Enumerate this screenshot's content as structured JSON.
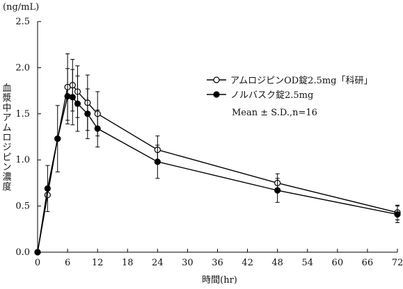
{
  "chart_data": {
    "type": "line",
    "unit_label": "(ng/mL)",
    "xlabel": "時間(hr)",
    "ylabel": "血漿中アムロジピン濃度",
    "xlim": [
      0,
      72
    ],
    "ylim": [
      0,
      2.5
    ],
    "xticks": [
      0,
      6,
      12,
      18,
      24,
      30,
      36,
      42,
      48,
      54,
      60,
      66,
      72
    ],
    "yticks": [
      "0.0",
      "0.5",
      "1.0",
      "1.5",
      "2.0",
      "2.5"
    ],
    "grid": false,
    "legend_position": "top-right",
    "annotation": "Mean ± S.D.,n=16",
    "series": [
      {
        "name": "アムロジピンOD錠2.5mg「科研」",
        "marker": "open-circle",
        "color": "#000000",
        "x": [
          0,
          2,
          4,
          6,
          7,
          8,
          10,
          12,
          24,
          48,
          72
        ],
        "y": [
          0.0,
          0.62,
          1.23,
          1.79,
          1.81,
          1.74,
          1.62,
          1.5,
          1.11,
          0.75,
          0.43
        ],
        "sd": [
          0.0,
          0.0,
          0.36,
          0.36,
          0.28,
          0.28,
          0.3,
          0.24,
          0.15,
          0.1,
          0.08
        ]
      },
      {
        "name": "ノルバスク錠2.5mg",
        "marker": "filled-circle",
        "color": "#000000",
        "x": [
          0,
          2,
          4,
          6,
          7,
          8,
          10,
          12,
          24,
          48,
          72
        ],
        "y": [
          0.0,
          0.69,
          1.23,
          1.69,
          1.68,
          1.61,
          1.5,
          1.34,
          0.98,
          0.67,
          0.41
        ],
        "sd": [
          0.0,
          0.25,
          0.0,
          0.3,
          0.3,
          0.3,
          0.27,
          0.2,
          0.18,
          0.13,
          0.09
        ]
      }
    ]
  }
}
